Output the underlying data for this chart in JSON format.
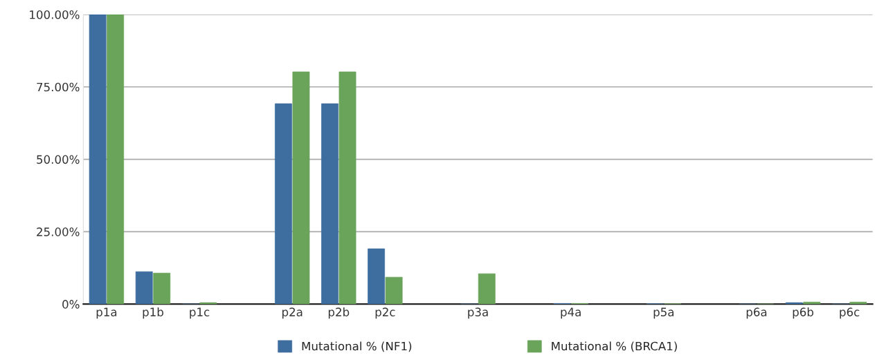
{
  "chart_data": {
    "type": "bar",
    "categories": [
      "p1a",
      "p1b",
      "p1c",
      null,
      "p2a",
      "p2b",
      "p2c",
      null,
      "p3a",
      null,
      "p4a",
      null,
      "p5a",
      null,
      "p6a",
      "p6b",
      "p6c"
    ],
    "series": [
      {
        "name": "Mutational % (NF1)",
        "color": "#3e6da0",
        "values": [
          100,
          11.2,
          0,
          null,
          69.2,
          69.2,
          19.1,
          null,
          0,
          null,
          0.2,
          null,
          0.1,
          null,
          0,
          0.5,
          0
        ]
      },
      {
        "name": "Mutational % (BRCA1)",
        "color": "#6aa35a",
        "values": [
          100,
          10.7,
          0.5,
          null,
          80.2,
          80.2,
          9.3,
          null,
          10.5,
          null,
          0.2,
          null,
          0.1,
          null,
          0,
          0.7,
          0.7
        ]
      }
    ],
    "ylim": [
      0,
      100
    ],
    "yticks": [
      {
        "value": 0,
        "label": "0%"
      },
      {
        "value": 25,
        "label": "25.00%"
      },
      {
        "value": 50,
        "label": "50.00%"
      },
      {
        "value": 75,
        "label": "75.00%"
      },
      {
        "value": 100,
        "label": "100.00%"
      }
    ],
    "grid": "y",
    "legend": "bottom"
  }
}
